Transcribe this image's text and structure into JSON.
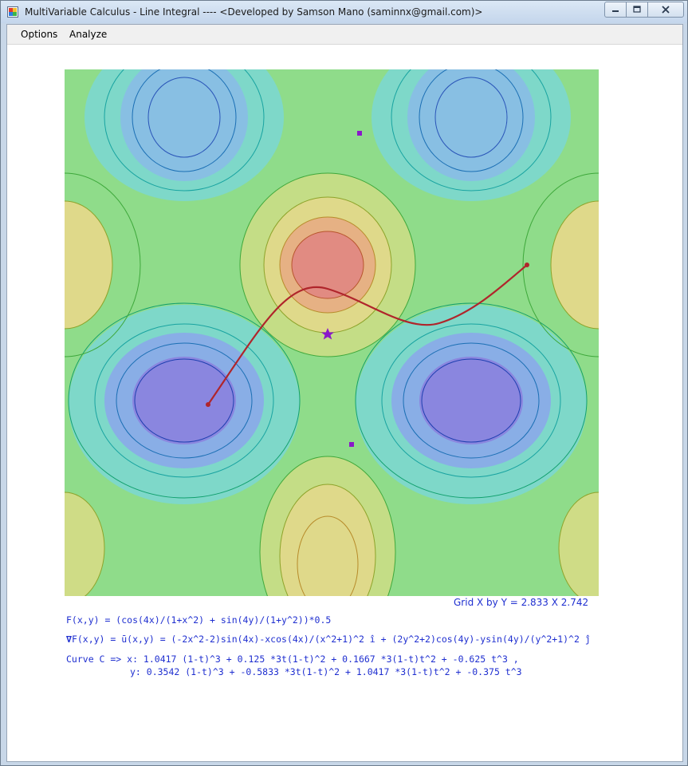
{
  "window": {
    "title": "MultiVariable Calculus - Line Integral ---- <Developed by Samson Mano (saminnx@gmail.com)>"
  },
  "menu": [
    {
      "label": "Options"
    },
    {
      "label": "Analyze"
    }
  ],
  "grid_info": "Grid X by Y = 2.833 X 2.742",
  "function_text": "F(x,y) = (cos(4x)/(1+x^2) + sin(4y)/(1+y^2))*0.5",
  "gradient_symbol": "∇",
  "gradient_text": "F(x,y) = ū(x,y) = (-2x^2-2)sin(4x)-xcos(4x)/(x^2+1)^2 î + (2y^2+2)cos(4y)-ysin(4y)/(y^2+1)^2 ĵ",
  "curve_x": "Curve C => x: 1.0417 (1-t)^3 + 0.125 *3t(1-t)^2 + 0.1667 *3(1-t)t^2 + -0.625 t^3 ,",
  "curve_y": "y: 0.3542 (1-t)^3 + -0.5833 *3t(1-t)^2 + 1.0417 *3(1-t)t^2 + -0.375 t^3",
  "colors": {
    "text_blue": "#1f2fd0",
    "curve": "#b0252b",
    "marker": "#8a18c9"
  },
  "chart_data": {
    "type": "heatmap",
    "function": "(cos(4x)/(1+x^2) + sin(4y)/(1+y^2))*0.5",
    "grid_x": 2.833,
    "grid_y": 2.742,
    "colormap": [
      "blue",
      "cyan",
      "green",
      "yellow",
      "red"
    ],
    "curve": {
      "x": [
        1.0417,
        0.125,
        0.1667,
        -0.625
      ],
      "y": [
        0.3542,
        -0.5833,
        1.0417,
        -0.375
      ]
    }
  }
}
